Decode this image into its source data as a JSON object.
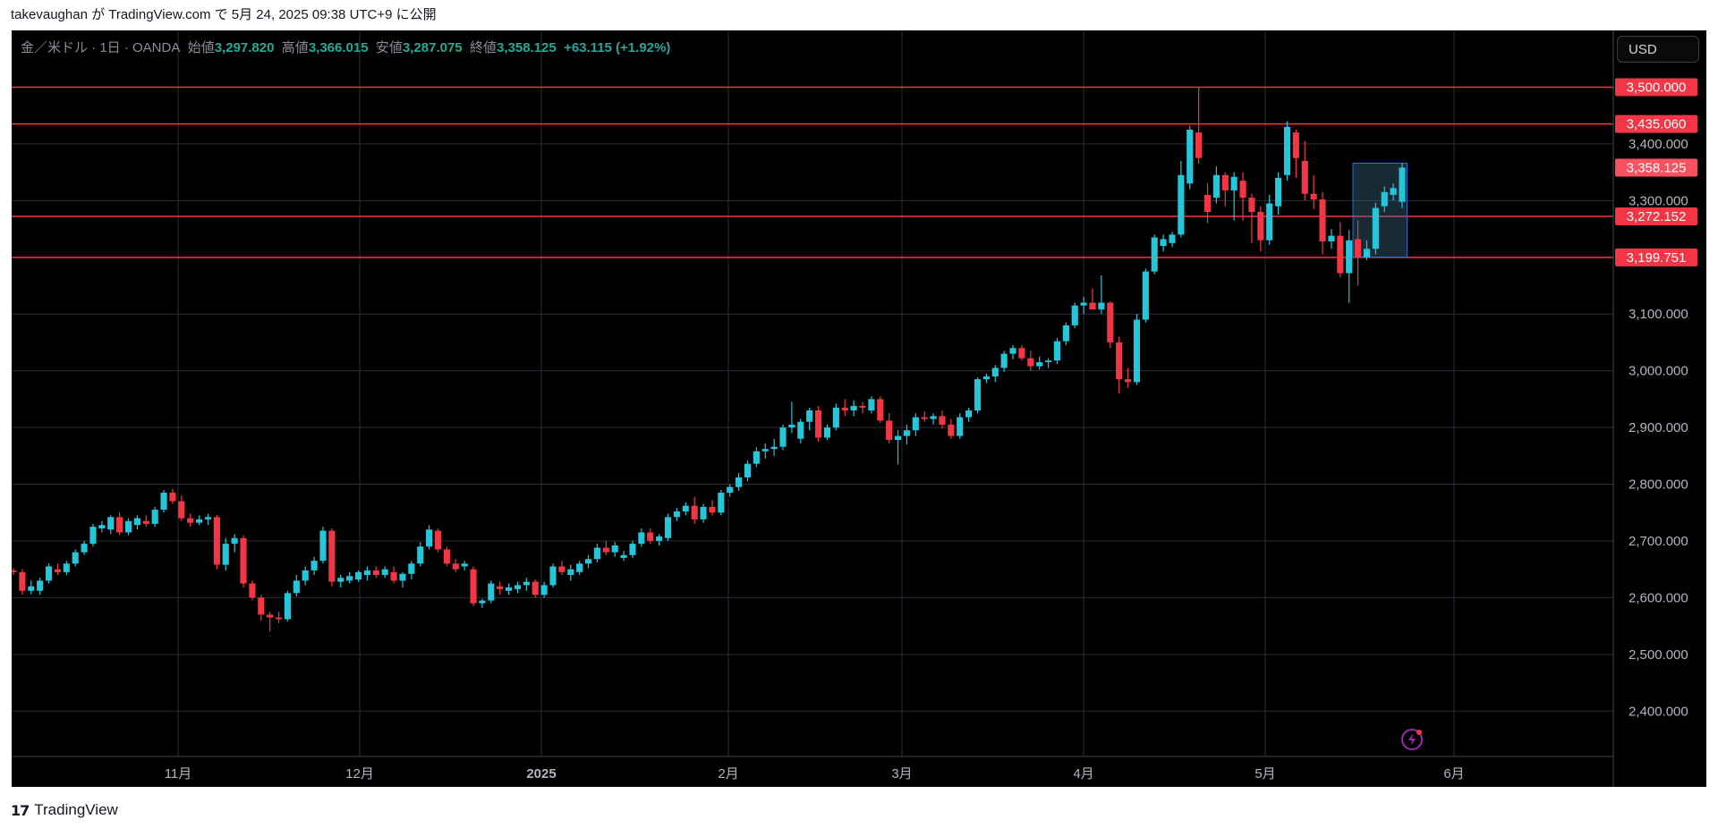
{
  "header": {
    "text": "takevaughan が TradingView.com で 5月 24, 2025 09:38 UTC+9 に公開"
  },
  "legend": {
    "symbol": "金／米ドル · 1日 · OANDA",
    "open_label": "始値",
    "open": "3,297.820",
    "high_label": "高値",
    "high": "3,366.015",
    "low_label": "安値",
    "low": "3,287.075",
    "close_label": "終値",
    "close": "3,358.125",
    "change": "+63.115 (+1.92%)"
  },
  "currency_button": "USD",
  "footer": {
    "logo": "17",
    "brand": "TradingView"
  },
  "colors": {
    "up": "#26c6da",
    "down": "#f23645",
    "grid": "#2a2e39",
    "line": "#f23645",
    "price_badge": "#f7525f"
  },
  "chart_data": {
    "type": "candlestick",
    "ylim": [
      2320,
      3600
    ],
    "y_ticks": [
      "2,400.000",
      "2,500.000",
      "2,600.000",
      "2,700.000",
      "2,800.000",
      "2,900.000",
      "3,000.000",
      "3,100.000",
      "3,300.000",
      "3,400.000"
    ],
    "x_ticks": [
      "11月",
      "12月",
      "2025",
      "2月",
      "3月",
      "4月",
      "5月",
      "6月"
    ],
    "horizontal_lines": [
      {
        "value": 3500.0,
        "label": "3,500.000"
      },
      {
        "value": 3435.06,
        "label": "3,435.060"
      },
      {
        "value": 3272.152,
        "label": "3,272.152"
      },
      {
        "value": 3199.751,
        "label": "3,199.751"
      }
    ],
    "last_price": {
      "value": 3358.125,
      "label": "3,358.125"
    },
    "highlight_box": {
      "y_top": 3366,
      "y_bottom": 3200
    },
    "candles": [
      {
        "o": 2648,
        "h": 2652,
        "l": 2640,
        "c": 2645
      },
      {
        "o": 2645,
        "h": 2650,
        "l": 2605,
        "c": 2612
      },
      {
        "o": 2612,
        "h": 2630,
        "l": 2606,
        "c": 2620
      },
      {
        "o": 2612,
        "h": 2635,
        "l": 2605,
        "c": 2630
      },
      {
        "o": 2630,
        "h": 2660,
        "l": 2625,
        "c": 2655
      },
      {
        "o": 2650,
        "h": 2660,
        "l": 2640,
        "c": 2645
      },
      {
        "o": 2645,
        "h": 2665,
        "l": 2640,
        "c": 2660
      },
      {
        "o": 2660,
        "h": 2685,
        "l": 2655,
        "c": 2680
      },
      {
        "o": 2680,
        "h": 2700,
        "l": 2675,
        "c": 2695
      },
      {
        "o": 2695,
        "h": 2730,
        "l": 2690,
        "c": 2725
      },
      {
        "o": 2722,
        "h": 2735,
        "l": 2715,
        "c": 2728
      },
      {
        "o": 2720,
        "h": 2745,
        "l": 2712,
        "c": 2742
      },
      {
        "o": 2742,
        "h": 2750,
        "l": 2710,
        "c": 2715
      },
      {
        "o": 2715,
        "h": 2740,
        "l": 2710,
        "c": 2735
      },
      {
        "o": 2728,
        "h": 2745,
        "l": 2720,
        "c": 2740
      },
      {
        "o": 2735,
        "h": 2745,
        "l": 2725,
        "c": 2730
      },
      {
        "o": 2730,
        "h": 2760,
        "l": 2725,
        "c": 2755
      },
      {
        "o": 2755,
        "h": 2790,
        "l": 2750,
        "c": 2785
      },
      {
        "o": 2785,
        "h": 2792,
        "l": 2765,
        "c": 2770
      },
      {
        "o": 2770,
        "h": 2780,
        "l": 2735,
        "c": 2740
      },
      {
        "o": 2740,
        "h": 2748,
        "l": 2725,
        "c": 2732
      },
      {
        "o": 2732,
        "h": 2745,
        "l": 2728,
        "c": 2738
      },
      {
        "o": 2738,
        "h": 2748,
        "l": 2728,
        "c": 2742
      },
      {
        "o": 2742,
        "h": 2746,
        "l": 2650,
        "c": 2658
      },
      {
        "o": 2658,
        "h": 2705,
        "l": 2648,
        "c": 2695
      },
      {
        "o": 2695,
        "h": 2712,
        "l": 2680,
        "c": 2705
      },
      {
        "o": 2705,
        "h": 2710,
        "l": 2618,
        "c": 2625
      },
      {
        "o": 2625,
        "h": 2630,
        "l": 2595,
        "c": 2600
      },
      {
        "o": 2600,
        "h": 2605,
        "l": 2560,
        "c": 2570
      },
      {
        "o": 2570,
        "h": 2575,
        "l": 2540,
        "c": 2565
      },
      {
        "o": 2565,
        "h": 2575,
        "l": 2555,
        "c": 2562
      },
      {
        "o": 2562,
        "h": 2612,
        "l": 2558,
        "c": 2608
      },
      {
        "o": 2608,
        "h": 2640,
        "l": 2602,
        "c": 2630
      },
      {
        "o": 2630,
        "h": 2655,
        "l": 2622,
        "c": 2648
      },
      {
        "o": 2648,
        "h": 2672,
        "l": 2640,
        "c": 2665
      },
      {
        "o": 2665,
        "h": 2725,
        "l": 2660,
        "c": 2718
      },
      {
        "o": 2718,
        "h": 2722,
        "l": 2620,
        "c": 2628
      },
      {
        "o": 2628,
        "h": 2640,
        "l": 2618,
        "c": 2635
      },
      {
        "o": 2630,
        "h": 2645,
        "l": 2625,
        "c": 2638
      },
      {
        "o": 2632,
        "h": 2648,
        "l": 2628,
        "c": 2645
      },
      {
        "o": 2640,
        "h": 2655,
        "l": 2630,
        "c": 2648
      },
      {
        "o": 2648,
        "h": 2655,
        "l": 2635,
        "c": 2640
      },
      {
        "o": 2640,
        "h": 2655,
        "l": 2635,
        "c": 2650
      },
      {
        "o": 2645,
        "h": 2655,
        "l": 2625,
        "c": 2630
      },
      {
        "o": 2630,
        "h": 2645,
        "l": 2618,
        "c": 2642
      },
      {
        "o": 2642,
        "h": 2665,
        "l": 2632,
        "c": 2660
      },
      {
        "o": 2660,
        "h": 2698,
        "l": 2655,
        "c": 2690
      },
      {
        "o": 2690,
        "h": 2728,
        "l": 2685,
        "c": 2720
      },
      {
        "o": 2718,
        "h": 2722,
        "l": 2680,
        "c": 2685
      },
      {
        "o": 2685,
        "h": 2690,
        "l": 2655,
        "c": 2660
      },
      {
        "o": 2660,
        "h": 2668,
        "l": 2645,
        "c": 2650
      },
      {
        "o": 2655,
        "h": 2665,
        "l": 2648,
        "c": 2660
      },
      {
        "o": 2650,
        "h": 2655,
        "l": 2585,
        "c": 2590
      },
      {
        "o": 2590,
        "h": 2598,
        "l": 2582,
        "c": 2595
      },
      {
        "o": 2595,
        "h": 2630,
        "l": 2590,
        "c": 2625
      },
      {
        "o": 2620,
        "h": 2628,
        "l": 2605,
        "c": 2615
      },
      {
        "o": 2612,
        "h": 2625,
        "l": 2605,
        "c": 2618
      },
      {
        "o": 2615,
        "h": 2628,
        "l": 2608,
        "c": 2622
      },
      {
        "o": 2622,
        "h": 2635,
        "l": 2612,
        "c": 2628
      },
      {
        "o": 2628,
        "h": 2632,
        "l": 2600,
        "c": 2605
      },
      {
        "o": 2605,
        "h": 2628,
        "l": 2600,
        "c": 2622
      },
      {
        "o": 2622,
        "h": 2660,
        "l": 2618,
        "c": 2655
      },
      {
        "o": 2655,
        "h": 2665,
        "l": 2640,
        "c": 2645
      },
      {
        "o": 2640,
        "h": 2658,
        "l": 2630,
        "c": 2650
      },
      {
        "o": 2645,
        "h": 2665,
        "l": 2640,
        "c": 2660
      },
      {
        "o": 2660,
        "h": 2675,
        "l": 2652,
        "c": 2668
      },
      {
        "o": 2668,
        "h": 2695,
        "l": 2662,
        "c": 2688
      },
      {
        "o": 2688,
        "h": 2700,
        "l": 2675,
        "c": 2680
      },
      {
        "o": 2680,
        "h": 2698,
        "l": 2672,
        "c": 2692
      },
      {
        "o": 2670,
        "h": 2682,
        "l": 2665,
        "c": 2675
      },
      {
        "o": 2675,
        "h": 2700,
        "l": 2670,
        "c": 2695
      },
      {
        "o": 2695,
        "h": 2722,
        "l": 2690,
        "c": 2715
      },
      {
        "o": 2715,
        "h": 2722,
        "l": 2695,
        "c": 2700
      },
      {
        "o": 2700,
        "h": 2712,
        "l": 2692,
        "c": 2708
      },
      {
        "o": 2705,
        "h": 2748,
        "l": 2700,
        "c": 2742
      },
      {
        "o": 2742,
        "h": 2758,
        "l": 2735,
        "c": 2752
      },
      {
        "o": 2752,
        "h": 2768,
        "l": 2745,
        "c": 2762
      },
      {
        "o": 2762,
        "h": 2778,
        "l": 2730,
        "c": 2738
      },
      {
        "o": 2738,
        "h": 2765,
        "l": 2732,
        "c": 2760
      },
      {
        "o": 2760,
        "h": 2772,
        "l": 2745,
        "c": 2750
      },
      {
        "o": 2750,
        "h": 2790,
        "l": 2745,
        "c": 2785
      },
      {
        "o": 2785,
        "h": 2800,
        "l": 2778,
        "c": 2795
      },
      {
        "o": 2795,
        "h": 2820,
        "l": 2788,
        "c": 2812
      },
      {
        "o": 2812,
        "h": 2842,
        "l": 2805,
        "c": 2836
      },
      {
        "o": 2836,
        "h": 2865,
        "l": 2830,
        "c": 2858
      },
      {
        "o": 2858,
        "h": 2872,
        "l": 2845,
        "c": 2862
      },
      {
        "o": 2862,
        "h": 2880,
        "l": 2850,
        "c": 2866
      },
      {
        "o": 2866,
        "h": 2905,
        "l": 2860,
        "c": 2900
      },
      {
        "o": 2900,
        "h": 2945,
        "l": 2890,
        "c": 2905
      },
      {
        "o": 2880,
        "h": 2915,
        "l": 2872,
        "c": 2910
      },
      {
        "o": 2910,
        "h": 2935,
        "l": 2895,
        "c": 2930
      },
      {
        "o": 2930,
        "h": 2938,
        "l": 2875,
        "c": 2882
      },
      {
        "o": 2882,
        "h": 2905,
        "l": 2878,
        "c": 2900
      },
      {
        "o": 2900,
        "h": 2942,
        "l": 2895,
        "c": 2935
      },
      {
        "o": 2935,
        "h": 2950,
        "l": 2920,
        "c": 2930
      },
      {
        "o": 2930,
        "h": 2948,
        "l": 2920,
        "c": 2938
      },
      {
        "o": 2938,
        "h": 2945,
        "l": 2925,
        "c": 2935
      },
      {
        "o": 2930,
        "h": 2955,
        "l": 2925,
        "c": 2950
      },
      {
        "o": 2950,
        "h": 2955,
        "l": 2908,
        "c": 2912
      },
      {
        "o": 2912,
        "h": 2925,
        "l": 2872,
        "c": 2878
      },
      {
        "o": 2878,
        "h": 2895,
        "l": 2835,
        "c": 2885
      },
      {
        "o": 2885,
        "h": 2905,
        "l": 2870,
        "c": 2895
      },
      {
        "o": 2895,
        "h": 2925,
        "l": 2885,
        "c": 2918
      },
      {
        "o": 2918,
        "h": 2928,
        "l": 2910,
        "c": 2915
      },
      {
        "o": 2915,
        "h": 2925,
        "l": 2905,
        "c": 2920
      },
      {
        "o": 2920,
        "h": 2930,
        "l": 2898,
        "c": 2905
      },
      {
        "o": 2905,
        "h": 2915,
        "l": 2880,
        "c": 2885
      },
      {
        "o": 2885,
        "h": 2925,
        "l": 2880,
        "c": 2918
      },
      {
        "o": 2918,
        "h": 2935,
        "l": 2910,
        "c": 2930
      },
      {
        "o": 2930,
        "h": 2988,
        "l": 2925,
        "c": 2985
      },
      {
        "o": 2985,
        "h": 2995,
        "l": 2978,
        "c": 2990
      },
      {
        "o": 2990,
        "h": 3010,
        "l": 2980,
        "c": 3005
      },
      {
        "o": 3005,
        "h": 3035,
        "l": 2998,
        "c": 3030
      },
      {
        "o": 3030,
        "h": 3045,
        "l": 3020,
        "c": 3040
      },
      {
        "o": 3040,
        "h": 3045,
        "l": 3018,
        "c": 3022
      },
      {
        "o": 3022,
        "h": 3035,
        "l": 3000,
        "c": 3008
      },
      {
        "o": 3008,
        "h": 3025,
        "l": 3002,
        "c": 3015
      },
      {
        "o": 3015,
        "h": 3022,
        "l": 3005,
        "c": 3018
      },
      {
        "o": 3018,
        "h": 3058,
        "l": 3012,
        "c": 3052
      },
      {
        "o": 3052,
        "h": 3085,
        "l": 3045,
        "c": 3080
      },
      {
        "o": 3080,
        "h": 3120,
        "l": 3075,
        "c": 3115
      },
      {
        "o": 3115,
        "h": 3130,
        "l": 3100,
        "c": 3120
      },
      {
        "o": 3120,
        "h": 3145,
        "l": 3110,
        "c": 3108
      },
      {
        "o": 3108,
        "h": 3168,
        "l": 3100,
        "c": 3120
      },
      {
        "o": 3120,
        "h": 3122,
        "l": 3040,
        "c": 3050
      },
      {
        "o": 3050,
        "h": 3060,
        "l": 2960,
        "c": 2985
      },
      {
        "o": 2985,
        "h": 3005,
        "l": 2970,
        "c": 2980
      },
      {
        "o": 2980,
        "h": 3100,
        "l": 2975,
        "c": 3090
      },
      {
        "o": 3090,
        "h": 3180,
        "l": 3085,
        "c": 3175
      },
      {
        "o": 3175,
        "h": 3240,
        "l": 3170,
        "c": 3235
      },
      {
        "o": 3220,
        "h": 3240,
        "l": 3210,
        "c": 3232
      },
      {
        "o": 3225,
        "h": 3245,
        "l": 3218,
        "c": 3240
      },
      {
        "o": 3240,
        "h": 3370,
        "l": 3235,
        "c": 3345
      },
      {
        "o": 3330,
        "h": 3432,
        "l": 3320,
        "c": 3425
      },
      {
        "o": 3420,
        "h": 3500,
        "l": 3365,
        "c": 3375
      },
      {
        "o": 3310,
        "h": 3330,
        "l": 3260,
        "c": 3280
      },
      {
        "o": 3305,
        "h": 3360,
        "l": 3295,
        "c": 3345
      },
      {
        "o": 3345,
        "h": 3350,
        "l": 3290,
        "c": 3318
      },
      {
        "o": 3318,
        "h": 3350,
        "l": 3265,
        "c": 3342
      },
      {
        "o": 3335,
        "h": 3350,
        "l": 3265,
        "c": 3305
      },
      {
        "o": 3305,
        "h": 3312,
        "l": 3225,
        "c": 3280
      },
      {
        "o": 3280,
        "h": 3290,
        "l": 3210,
        "c": 3230
      },
      {
        "o": 3230,
        "h": 3310,
        "l": 3222,
        "c": 3295
      },
      {
        "o": 3290,
        "h": 3350,
        "l": 3275,
        "c": 3340
      },
      {
        "o": 3345,
        "h": 3440,
        "l": 3335,
        "c": 3430
      },
      {
        "o": 3420,
        "h": 3425,
        "l": 3340,
        "c": 3375
      },
      {
        "o": 3370,
        "h": 3405,
        "l": 3300,
        "c": 3312
      },
      {
        "o": 3312,
        "h": 3345,
        "l": 3285,
        "c": 3302
      },
      {
        "o": 3302,
        "h": 3315,
        "l": 3205,
        "c": 3228
      },
      {
        "o": 3228,
        "h": 3250,
        "l": 3215,
        "c": 3238
      },
      {
        "o": 3238,
        "h": 3262,
        "l": 3165,
        "c": 3172
      },
      {
        "o": 3172,
        "h": 3248,
        "l": 3120,
        "c": 3230
      },
      {
        "o": 3232,
        "h": 3265,
        "l": 3150,
        "c": 3200
      },
      {
        "o": 3200,
        "h": 3230,
        "l": 3195,
        "c": 3215
      },
      {
        "o": 3215,
        "h": 3296,
        "l": 3205,
        "c": 3287
      },
      {
        "o": 3290,
        "h": 3325,
        "l": 3280,
        "c": 3315
      },
      {
        "o": 3310,
        "h": 3330,
        "l": 3300,
        "c": 3322
      },
      {
        "o": 3297.8,
        "h": 3366.0,
        "l": 3287.1,
        "c": 3358.1
      }
    ]
  }
}
